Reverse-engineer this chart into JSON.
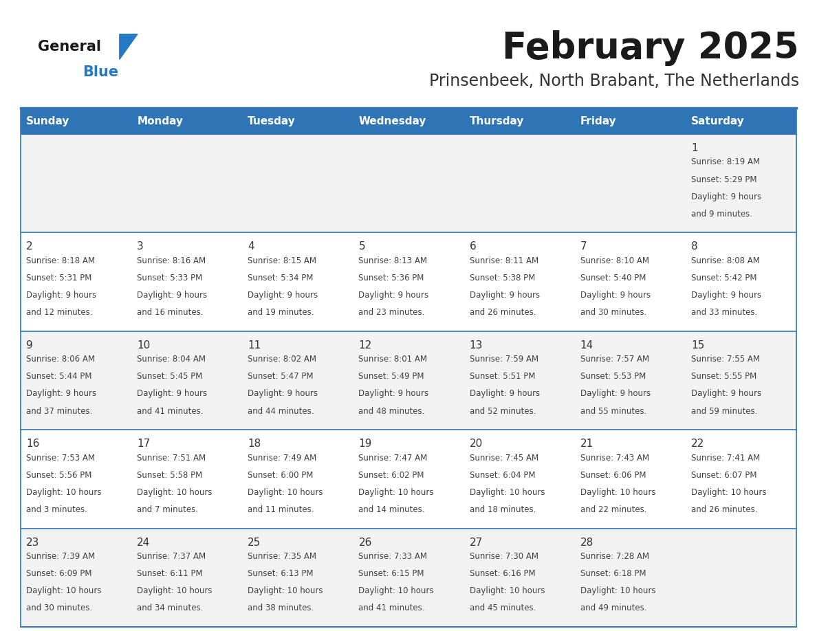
{
  "title": "February 2025",
  "subtitle": "Prinsenbeek, North Brabant, The Netherlands",
  "days_of_week": [
    "Sunday",
    "Monday",
    "Tuesday",
    "Wednesday",
    "Thursday",
    "Friday",
    "Saturday"
  ],
  "header_bg": "#2e75b6",
  "header_text": "#ffffff",
  "row_bg_odd": "#f2f2f2",
  "row_bg_even": "#ffffff",
  "cell_text_color": "#404040",
  "day_num_color": "#333333",
  "separator_color": "#2e75b6",
  "title_color": "#1a1a1a",
  "subtitle_color": "#333333",
  "logo_general_color": "#1a1a1a",
  "logo_blue_color": "#2679c5",
  "calendar_data": [
    [
      {
        "day": null,
        "sunrise": null,
        "sunset": null,
        "daylight_line1": null,
        "daylight_line2": null
      },
      {
        "day": null,
        "sunrise": null,
        "sunset": null,
        "daylight_line1": null,
        "daylight_line2": null
      },
      {
        "day": null,
        "sunrise": null,
        "sunset": null,
        "daylight_line1": null,
        "daylight_line2": null
      },
      {
        "day": null,
        "sunrise": null,
        "sunset": null,
        "daylight_line1": null,
        "daylight_line2": null
      },
      {
        "day": null,
        "sunrise": null,
        "sunset": null,
        "daylight_line1": null,
        "daylight_line2": null
      },
      {
        "day": null,
        "sunrise": null,
        "sunset": null,
        "daylight_line1": null,
        "daylight_line2": null
      },
      {
        "day": "1",
        "sunrise": "Sunrise: 8:19 AM",
        "sunset": "Sunset: 5:29 PM",
        "daylight_line1": "Daylight: 9 hours",
        "daylight_line2": "and 9 minutes."
      }
    ],
    [
      {
        "day": "2",
        "sunrise": "Sunrise: 8:18 AM",
        "sunset": "Sunset: 5:31 PM",
        "daylight_line1": "Daylight: 9 hours",
        "daylight_line2": "and 12 minutes."
      },
      {
        "day": "3",
        "sunrise": "Sunrise: 8:16 AM",
        "sunset": "Sunset: 5:33 PM",
        "daylight_line1": "Daylight: 9 hours",
        "daylight_line2": "and 16 minutes."
      },
      {
        "day": "4",
        "sunrise": "Sunrise: 8:15 AM",
        "sunset": "Sunset: 5:34 PM",
        "daylight_line1": "Daylight: 9 hours",
        "daylight_line2": "and 19 minutes."
      },
      {
        "day": "5",
        "sunrise": "Sunrise: 8:13 AM",
        "sunset": "Sunset: 5:36 PM",
        "daylight_line1": "Daylight: 9 hours",
        "daylight_line2": "and 23 minutes."
      },
      {
        "day": "6",
        "sunrise": "Sunrise: 8:11 AM",
        "sunset": "Sunset: 5:38 PM",
        "daylight_line1": "Daylight: 9 hours",
        "daylight_line2": "and 26 minutes."
      },
      {
        "day": "7",
        "sunrise": "Sunrise: 8:10 AM",
        "sunset": "Sunset: 5:40 PM",
        "daylight_line1": "Daylight: 9 hours",
        "daylight_line2": "and 30 minutes."
      },
      {
        "day": "8",
        "sunrise": "Sunrise: 8:08 AM",
        "sunset": "Sunset: 5:42 PM",
        "daylight_line1": "Daylight: 9 hours",
        "daylight_line2": "and 33 minutes."
      }
    ],
    [
      {
        "day": "9",
        "sunrise": "Sunrise: 8:06 AM",
        "sunset": "Sunset: 5:44 PM",
        "daylight_line1": "Daylight: 9 hours",
        "daylight_line2": "and 37 minutes."
      },
      {
        "day": "10",
        "sunrise": "Sunrise: 8:04 AM",
        "sunset": "Sunset: 5:45 PM",
        "daylight_line1": "Daylight: 9 hours",
        "daylight_line2": "and 41 minutes."
      },
      {
        "day": "11",
        "sunrise": "Sunrise: 8:02 AM",
        "sunset": "Sunset: 5:47 PM",
        "daylight_line1": "Daylight: 9 hours",
        "daylight_line2": "and 44 minutes."
      },
      {
        "day": "12",
        "sunrise": "Sunrise: 8:01 AM",
        "sunset": "Sunset: 5:49 PM",
        "daylight_line1": "Daylight: 9 hours",
        "daylight_line2": "and 48 minutes."
      },
      {
        "day": "13",
        "sunrise": "Sunrise: 7:59 AM",
        "sunset": "Sunset: 5:51 PM",
        "daylight_line1": "Daylight: 9 hours",
        "daylight_line2": "and 52 minutes."
      },
      {
        "day": "14",
        "sunrise": "Sunrise: 7:57 AM",
        "sunset": "Sunset: 5:53 PM",
        "daylight_line1": "Daylight: 9 hours",
        "daylight_line2": "and 55 minutes."
      },
      {
        "day": "15",
        "sunrise": "Sunrise: 7:55 AM",
        "sunset": "Sunset: 5:55 PM",
        "daylight_line1": "Daylight: 9 hours",
        "daylight_line2": "and 59 minutes."
      }
    ],
    [
      {
        "day": "16",
        "sunrise": "Sunrise: 7:53 AM",
        "sunset": "Sunset: 5:56 PM",
        "daylight_line1": "Daylight: 10 hours",
        "daylight_line2": "and 3 minutes."
      },
      {
        "day": "17",
        "sunrise": "Sunrise: 7:51 AM",
        "sunset": "Sunset: 5:58 PM",
        "daylight_line1": "Daylight: 10 hours",
        "daylight_line2": "and 7 minutes."
      },
      {
        "day": "18",
        "sunrise": "Sunrise: 7:49 AM",
        "sunset": "Sunset: 6:00 PM",
        "daylight_line1": "Daylight: 10 hours",
        "daylight_line2": "and 11 minutes."
      },
      {
        "day": "19",
        "sunrise": "Sunrise: 7:47 AM",
        "sunset": "Sunset: 6:02 PM",
        "daylight_line1": "Daylight: 10 hours",
        "daylight_line2": "and 14 minutes."
      },
      {
        "day": "20",
        "sunrise": "Sunrise: 7:45 AM",
        "sunset": "Sunset: 6:04 PM",
        "daylight_line1": "Daylight: 10 hours",
        "daylight_line2": "and 18 minutes."
      },
      {
        "day": "21",
        "sunrise": "Sunrise: 7:43 AM",
        "sunset": "Sunset: 6:06 PM",
        "daylight_line1": "Daylight: 10 hours",
        "daylight_line2": "and 22 minutes."
      },
      {
        "day": "22",
        "sunrise": "Sunrise: 7:41 AM",
        "sunset": "Sunset: 6:07 PM",
        "daylight_line1": "Daylight: 10 hours",
        "daylight_line2": "and 26 minutes."
      }
    ],
    [
      {
        "day": "23",
        "sunrise": "Sunrise: 7:39 AM",
        "sunset": "Sunset: 6:09 PM",
        "daylight_line1": "Daylight: 10 hours",
        "daylight_line2": "and 30 minutes."
      },
      {
        "day": "24",
        "sunrise": "Sunrise: 7:37 AM",
        "sunset": "Sunset: 6:11 PM",
        "daylight_line1": "Daylight: 10 hours",
        "daylight_line2": "and 34 minutes."
      },
      {
        "day": "25",
        "sunrise": "Sunrise: 7:35 AM",
        "sunset": "Sunset: 6:13 PM",
        "daylight_line1": "Daylight: 10 hours",
        "daylight_line2": "and 38 minutes."
      },
      {
        "day": "26",
        "sunrise": "Sunrise: 7:33 AM",
        "sunset": "Sunset: 6:15 PM",
        "daylight_line1": "Daylight: 10 hours",
        "daylight_line2": "and 41 minutes."
      },
      {
        "day": "27",
        "sunrise": "Sunrise: 7:30 AM",
        "sunset": "Sunset: 6:16 PM",
        "daylight_line1": "Daylight: 10 hours",
        "daylight_line2": "and 45 minutes."
      },
      {
        "day": "28",
        "sunrise": "Sunrise: 7:28 AM",
        "sunset": "Sunset: 6:18 PM",
        "daylight_line1": "Daylight: 10 hours",
        "daylight_line2": "and 49 minutes."
      },
      {
        "day": null,
        "sunrise": null,
        "sunset": null,
        "daylight_line1": null,
        "daylight_line2": null
      }
    ]
  ],
  "figsize": [
    11.88,
    9.18
  ],
  "dpi": 100
}
